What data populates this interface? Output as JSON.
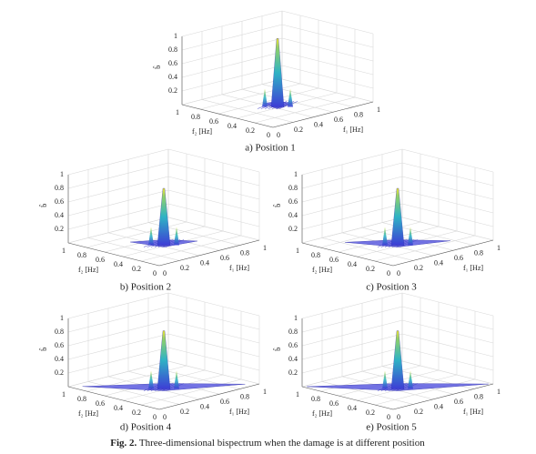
{
  "axes": {
    "zlabel": "b̂",
    "f1label": "f₁ [Hz]",
    "f2label": "f₂ [Hz]",
    "zticks": [
      0.2,
      0.4,
      0.6,
      0.8,
      1
    ],
    "f1ticks": [
      0,
      0.2,
      0.4,
      0.6,
      0.8,
      1
    ],
    "f2ticks": [
      0,
      0.2,
      0.4,
      0.6,
      0.8,
      1
    ]
  },
  "panels": [
    {
      "caption": "a) Position 1"
    },
    {
      "caption": "b) Position 2"
    },
    {
      "caption": "c) Position 3"
    },
    {
      "caption": "d) Position 4"
    },
    {
      "caption": "e) Position 5"
    }
  ],
  "figure": {
    "label": "Fig. 2.",
    "caption": "Three-dimensional bispectrum when the damage is at different position"
  }
}
